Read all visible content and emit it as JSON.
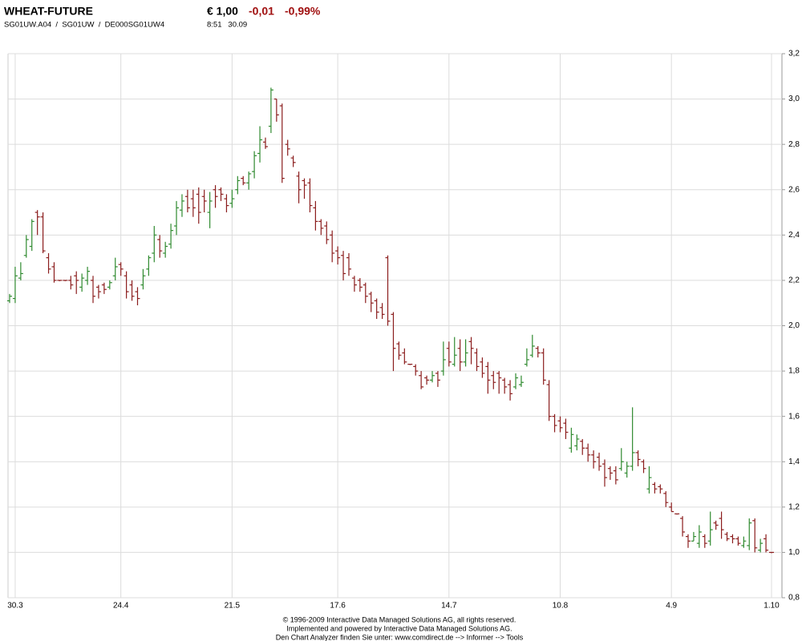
{
  "chart_data": {
    "type": "ohlc",
    "title": "WHEAT-FUTURE",
    "price": "€ 1,00",
    "change": "-0,01",
    "change_pct": "-0,99%",
    "subtitle": "SG01UW.A04  /  SG01UW  /  DE000SG01UW4",
    "time": "8:51   30.09",
    "footer": [
      "© 1996-2009 Interactive Data Managed Solutions AG, all rights reserved.",
      "Implemented and powered by Interactive Data Managed Solutions AG.",
      "Den Chart Analyzer finden Sie unter: www.comdirect.de --> Informer --> Tools"
    ],
    "up_color": "#2f8a2f",
    "down_color": "#8b1d1d",
    "grid": true,
    "ylim": [
      0.8,
      3.2
    ],
    "yticks": [
      {
        "value": 0.8,
        "label": "0,8"
      },
      {
        "value": 1.0,
        "label": "1,0"
      },
      {
        "value": 1.2,
        "label": "1,2"
      },
      {
        "value": 1.4,
        "label": "1,4"
      },
      {
        "value": 1.6,
        "label": "1,6"
      },
      {
        "value": 1.8,
        "label": "1,8"
      },
      {
        "value": 2.0,
        "label": "2,0"
      },
      {
        "value": 2.2,
        "label": "2,2"
      },
      {
        "value": 2.4,
        "label": "2,4"
      },
      {
        "value": 2.6,
        "label": "2,6"
      },
      {
        "value": 2.8,
        "label": "2,8"
      },
      {
        "value": 3.0,
        "label": "3,0"
      },
      {
        "value": 3.2,
        "label": "3,2"
      }
    ],
    "categories": [
      null,
      "30.3",
      null,
      null,
      null,
      null,
      null,
      null,
      null,
      null,
      null,
      null,
      null,
      null,
      null,
      null,
      null,
      null,
      null,
      null,
      "24.4",
      null,
      null,
      null,
      null,
      null,
      null,
      null,
      null,
      null,
      null,
      null,
      null,
      null,
      null,
      null,
      null,
      null,
      null,
      null,
      "21.5",
      null,
      null,
      null,
      null,
      null,
      null,
      null,
      null,
      null,
      null,
      null,
      null,
      null,
      null,
      null,
      null,
      null,
      null,
      "17.6",
      null,
      null,
      null,
      null,
      null,
      null,
      null,
      null,
      null,
      null,
      null,
      null,
      null,
      null,
      null,
      null,
      null,
      null,
      null,
      "14.7",
      null,
      null,
      null,
      null,
      null,
      null,
      null,
      null,
      null,
      null,
      null,
      null,
      null,
      null,
      null,
      null,
      null,
      null,
      null,
      "10.8",
      null,
      null,
      null,
      null,
      null,
      null,
      null,
      null,
      null,
      null,
      null,
      null,
      null,
      null,
      null,
      null,
      null,
      null,
      null,
      "4.9",
      null,
      null,
      null,
      null,
      null,
      null,
      null,
      null,
      null,
      null,
      null,
      null,
      null,
      null,
      null,
      null,
      null,
      "1.10"
    ],
    "ohlc": [
      [
        2.11,
        2.14,
        2.1,
        2.13
      ],
      [
        2.12,
        2.26,
        2.1,
        2.22
      ],
      [
        2.21,
        2.28,
        2.2,
        2.23
      ],
      [
        2.31,
        2.4,
        2.3,
        2.38
      ],
      [
        2.35,
        2.47,
        2.33,
        2.46
      ],
      [
        2.5,
        2.51,
        2.4,
        2.48
      ],
      [
        2.48,
        2.5,
        2.32,
        2.33
      ],
      [
        2.3,
        2.32,
        2.23,
        2.25
      ],
      [
        2.26,
        2.28,
        2.19,
        2.2
      ],
      [
        2.2,
        2.2,
        2.2,
        2.2
      ],
      [
        2.2,
        2.2,
        2.2,
        2.2
      ],
      [
        2.2,
        2.22,
        2.16,
        2.18
      ],
      [
        2.22,
        2.24,
        2.14,
        2.2
      ],
      [
        2.17,
        2.23,
        2.15,
        2.21
      ],
      [
        2.2,
        2.26,
        2.18,
        2.24
      ],
      [
        2.2,
        2.22,
        2.1,
        2.13
      ],
      [
        2.17,
        2.18,
        2.12,
        2.15
      ],
      [
        2.18,
        2.19,
        2.14,
        2.16
      ],
      [
        2.17,
        2.2,
        2.16,
        2.19
      ],
      [
        2.22,
        2.3,
        2.2,
        2.26
      ],
      [
        2.27,
        2.28,
        2.22,
        2.25
      ],
      [
        2.22,
        2.24,
        2.12,
        2.15
      ],
      [
        2.18,
        2.2,
        2.11,
        2.13
      ],
      [
        2.15,
        2.17,
        2.09,
        2.12
      ],
      [
        2.18,
        2.25,
        2.16,
        2.22
      ],
      [
        2.25,
        2.31,
        2.22,
        2.3
      ],
      [
        2.32,
        2.44,
        2.28,
        2.4
      ],
      [
        2.38,
        2.4,
        2.3,
        2.33
      ],
      [
        2.32,
        2.37,
        2.3,
        2.35
      ],
      [
        2.36,
        2.45,
        2.34,
        2.42
      ],
      [
        2.44,
        2.55,
        2.4,
        2.52
      ],
      [
        2.51,
        2.58,
        2.48,
        2.55
      ],
      [
        2.57,
        2.6,
        2.5,
        2.52
      ],
      [
        2.56,
        2.6,
        2.48,
        2.52
      ],
      [
        2.58,
        2.61,
        2.45,
        2.5
      ],
      [
        2.57,
        2.6,
        2.5,
        2.55
      ],
      [
        2.5,
        2.59,
        2.43,
        2.55
      ],
      [
        2.6,
        2.62,
        2.52,
        2.57
      ],
      [
        2.6,
        2.61,
        2.55,
        2.58
      ],
      [
        2.56,
        2.58,
        2.5,
        2.53
      ],
      [
        2.54,
        2.6,
        2.52,
        2.56
      ],
      [
        2.6,
        2.66,
        2.58,
        2.64
      ],
      [
        2.65,
        2.66,
        2.62,
        2.63
      ],
      [
        2.63,
        2.68,
        2.6,
        2.67
      ],
      [
        2.68,
        2.77,
        2.65,
        2.75
      ],
      [
        2.76,
        2.88,
        2.72,
        2.82
      ],
      [
        2.81,
        2.83,
        2.78,
        2.79
      ],
      [
        2.88,
        3.05,
        2.85,
        3.04
      ],
      [
        3.0,
        3.0,
        2.9,
        2.93
      ],
      [
        2.97,
        2.98,
        2.63,
        2.65
      ],
      [
        2.8,
        2.82,
        2.75,
        2.78
      ],
      [
        2.74,
        2.75,
        2.7,
        2.72
      ],
      [
        2.66,
        2.68,
        2.54,
        2.6
      ],
      [
        2.64,
        2.65,
        2.56,
        2.62
      ],
      [
        2.63,
        2.65,
        2.5,
        2.53
      ],
      [
        2.52,
        2.55,
        2.42,
        2.46
      ],
      [
        2.46,
        2.47,
        2.4,
        2.43
      ],
      [
        2.44,
        2.46,
        2.36,
        2.38
      ],
      [
        2.4,
        2.42,
        2.28,
        2.32
      ],
      [
        2.33,
        2.35,
        2.27,
        2.3
      ],
      [
        2.31,
        2.33,
        2.2,
        2.23
      ],
      [
        2.3,
        2.32,
        2.22,
        2.25
      ],
      [
        2.21,
        2.22,
        2.15,
        2.18
      ],
      [
        2.2,
        2.21,
        2.15,
        2.17
      ],
      [
        2.18,
        2.19,
        2.1,
        2.13
      ],
      [
        2.14,
        2.15,
        2.06,
        2.1
      ],
      [
        2.11,
        2.12,
        2.03,
        2.06
      ],
      [
        2.08,
        2.1,
        2.03,
        2.05
      ],
      [
        2.3,
        2.31,
        2.0,
        2.02
      ],
      [
        2.05,
        2.06,
        1.8,
        1.9
      ],
      [
        1.92,
        1.93,
        1.85,
        1.87
      ],
      [
        1.88,
        1.9,
        1.83,
        1.84
      ],
      [
        1.83,
        1.83,
        1.83,
        1.83
      ],
      [
        1.82,
        1.83,
        1.78,
        1.8
      ],
      [
        1.78,
        1.8,
        1.72,
        1.73
      ],
      [
        1.77,
        1.78,
        1.74,
        1.76
      ],
      [
        1.76,
        1.8,
        1.75,
        1.78
      ],
      [
        1.79,
        1.8,
        1.73,
        1.76
      ],
      [
        1.8,
        1.93,
        1.78,
        1.85
      ],
      [
        1.9,
        1.93,
        1.82,
        1.84
      ],
      [
        1.83,
        1.95,
        1.82,
        1.87
      ],
      [
        1.9,
        1.94,
        1.8,
        1.84
      ],
      [
        1.84,
        1.94,
        1.82,
        1.88
      ],
      [
        1.93,
        1.95,
        1.83,
        1.9
      ],
      [
        1.88,
        1.9,
        1.8,
        1.82
      ],
      [
        1.84,
        1.86,
        1.77,
        1.79
      ],
      [
        1.82,
        1.84,
        1.7,
        1.76
      ],
      [
        1.78,
        1.8,
        1.72,
        1.75
      ],
      [
        1.79,
        1.8,
        1.7,
        1.77
      ],
      [
        1.76,
        1.77,
        1.7,
        1.73
      ],
      [
        1.74,
        1.76,
        1.67,
        1.7
      ],
      [
        1.73,
        1.79,
        1.72,
        1.77
      ],
      [
        1.74,
        1.78,
        1.73,
        1.75
      ],
      [
        1.83,
        1.9,
        1.82,
        1.85
      ],
      [
        1.87,
        1.96,
        1.86,
        1.91
      ],
      [
        1.9,
        1.91,
        1.86,
        1.88
      ],
      [
        1.88,
        1.9,
        1.74,
        1.76
      ],
      [
        1.74,
        1.76,
        1.58,
        1.6
      ],
      [
        1.6,
        1.61,
        1.53,
        1.56
      ],
      [
        1.58,
        1.6,
        1.53,
        1.55
      ],
      [
        1.57,
        1.59,
        1.5,
        1.53
      ],
      [
        1.46,
        1.55,
        1.44,
        1.52
      ],
      [
        1.47,
        1.52,
        1.45,
        1.5
      ],
      [
        1.49,
        1.5,
        1.43,
        1.46
      ],
      [
        1.46,
        1.48,
        1.4,
        1.43
      ],
      [
        1.43,
        1.45,
        1.37,
        1.4
      ],
      [
        1.42,
        1.44,
        1.36,
        1.38
      ],
      [
        1.39,
        1.41,
        1.29,
        1.33
      ],
      [
        1.37,
        1.38,
        1.32,
        1.35
      ],
      [
        1.36,
        1.38,
        1.3,
        1.32
      ],
      [
        1.37,
        1.46,
        1.36,
        1.4
      ],
      [
        1.35,
        1.4,
        1.33,
        1.38
      ],
      [
        1.38,
        1.64,
        1.36,
        1.44
      ],
      [
        1.44,
        1.45,
        1.38,
        1.41
      ],
      [
        1.4,
        1.41,
        1.35,
        1.37
      ],
      [
        1.28,
        1.38,
        1.26,
        1.33
      ],
      [
        1.3,
        1.31,
        1.26,
        1.28
      ],
      [
        1.29,
        1.3,
        1.26,
        1.28
      ],
      [
        1.26,
        1.27,
        1.2,
        1.22
      ],
      [
        1.2,
        1.22,
        1.18,
        1.18
      ],
      [
        1.17,
        1.17,
        1.17,
        1.17
      ],
      [
        1.15,
        1.16,
        1.07,
        1.09
      ],
      [
        1.07,
        1.08,
        1.02,
        1.05
      ],
      [
        1.05,
        1.09,
        1.05,
        1.07
      ],
      [
        1.04,
        1.12,
        1.02,
        1.09
      ],
      [
        1.07,
        1.08,
        1.02,
        1.04
      ],
      [
        1.05,
        1.18,
        1.03,
        1.1
      ],
      [
        1.13,
        1.14,
        1.1,
        1.12
      ],
      [
        1.15,
        1.18,
        1.06,
        1.1
      ],
      [
        1.08,
        1.09,
        1.05,
        1.06
      ],
      [
        1.07,
        1.08,
        1.04,
        1.06
      ],
      [
        1.06,
        1.07,
        1.03,
        1.04
      ],
      [
        1.03,
        1.07,
        1.02,
        1.05
      ],
      [
        1.03,
        1.15,
        1.01,
        1.13
      ],
      [
        1.14,
        1.15,
        1.0,
        1.02
      ],
      [
        1.01,
        1.06,
        1.0,
        1.04
      ],
      [
        1.06,
        1.08,
        1.0,
        1.01
      ],
      [
        1.0,
        1.0,
        1.0,
        1.0
      ]
    ]
  }
}
